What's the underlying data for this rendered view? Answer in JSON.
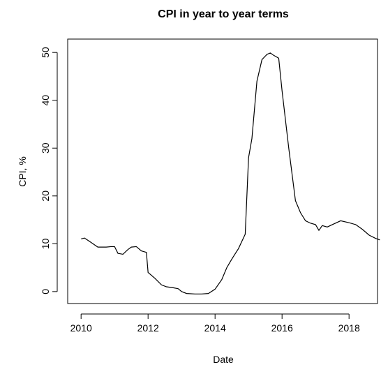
{
  "chart_data": {
    "type": "line",
    "title": "CPI in year to year terms",
    "x_label": "Date",
    "y_label": "CPI, %",
    "x": [
      2010.0,
      2010.1,
      2010.25,
      2010.5,
      2010.75,
      2010.9,
      2011.0,
      2011.1,
      2011.25,
      2011.4,
      2011.5,
      2011.65,
      2011.8,
      2011.95,
      2012.0,
      2012.2,
      2012.4,
      2012.55,
      2012.75,
      2012.9,
      2013.0,
      2013.15,
      2013.4,
      2013.6,
      2013.8,
      2014.0,
      2014.2,
      2014.35,
      2014.5,
      2014.7,
      2014.9,
      2015.0,
      2015.1,
      2015.25,
      2015.4,
      2015.55,
      2015.65,
      2015.75,
      2015.9,
      2016.0,
      2016.2,
      2016.4,
      2016.55,
      2016.7,
      2016.85,
      2017.0,
      2017.1,
      2017.2,
      2017.35,
      2017.5,
      2017.75,
      2018.0,
      2018.2,
      2018.4,
      2018.6,
      2018.8,
      2018.92
    ],
    "series": [
      {
        "color": "#000000",
        "values": [
          11,
          11.2,
          10.5,
          9.3,
          9.3,
          9.4,
          9.4,
          8,
          7.8,
          8.8,
          9.3,
          9.4,
          8.5,
          8.2,
          4,
          2.8,
          1.4,
          1,
          0.8,
          0.6,
          0,
          -0.4,
          -0.5,
          -0.5,
          -0.4,
          0.5,
          2.5,
          5,
          6.8,
          9,
          12,
          28,
          32,
          44,
          48.5,
          49.6,
          49.9,
          49.4,
          48.8,
          42,
          30,
          19,
          16.5,
          14.8,
          14.3,
          14,
          12.8,
          13.8,
          13.5,
          14,
          14.8,
          14.4,
          14,
          13,
          11.8,
          11.1,
          10.8
        ]
      }
    ],
    "xlim": [
      2009.6,
      2018.85
    ],
    "ylim": [
      -2.5,
      52.8
    ],
    "xticks": [
      2010,
      2012,
      2014,
      2016,
      2018
    ],
    "yticks": [
      0,
      10,
      20,
      30,
      40,
      50
    ]
  }
}
